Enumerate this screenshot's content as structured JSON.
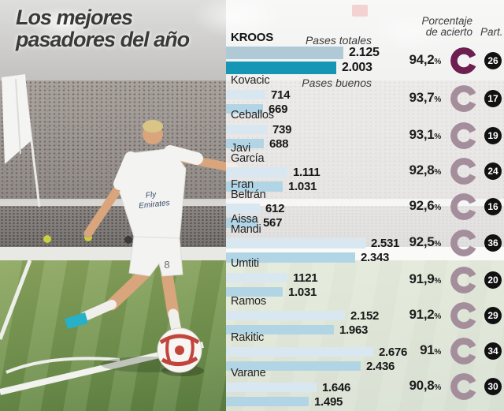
{
  "title": {
    "line1": "Los mejores",
    "line2": "pasadores del año"
  },
  "legend": {
    "pases_totales": "Pases totales",
    "pases_buenos": "Pases buenos"
  },
  "columns": {
    "accuracy_line1": "Porcentaje",
    "accuracy_line2": "de acierto",
    "matches": "Part."
  },
  "photo": {
    "jersey_line1": "Fly",
    "jersey_line2": "Emirates",
    "shorts_number": "8"
  },
  "colors": {
    "highlight_total_bar": "#b0c9d6",
    "highlight_good_bar": "#1596b5",
    "total_bar": "#d9e8f0",
    "good_bar": "#b2d5e6",
    "highlight_donut": "#6d2050",
    "donut": "#a48e9b",
    "badge_bg": "#111111",
    "badge_text": "#ffffff"
  },
  "chart_data": {
    "type": "bar",
    "title": "Los mejores pasadores del año",
    "bar_series_labels": [
      "Pases totales",
      "Pases buenos"
    ],
    "pct_suffix": "%",
    "series": [
      {
        "name": "KROOS",
        "total": 2125,
        "buenos": 2003,
        "total_label": "2.125",
        "buenos_label": "2.003",
        "pct": "94,2",
        "part": "26",
        "highlight": true
      },
      {
        "name": "Kovacic",
        "total": 714,
        "buenos": 669,
        "total_label": "714",
        "buenos_label": "669",
        "pct": "93,7",
        "part": "17",
        "highlight": false
      },
      {
        "name": "Ceballos",
        "total": 739,
        "buenos": 688,
        "total_label": "739",
        "buenos_label": "688",
        "pct": "93,1",
        "part": "19",
        "highlight": false
      },
      {
        "name": "Javi García",
        "total": 1111,
        "buenos": 1031,
        "total_label": "1.111",
        "buenos_label": "1.031",
        "pct": "92,8",
        "part": "24",
        "highlight": false
      },
      {
        "name": "Fran Beltrán",
        "total": 612,
        "buenos": 567,
        "total_label": "612",
        "buenos_label": "567",
        "pct": "92,6",
        "part": "16",
        "highlight": false
      },
      {
        "name": "Aissa Mandi",
        "total": 2531,
        "buenos": 2343,
        "total_label": "2.531",
        "buenos_label": "2.343",
        "pct": "92,5",
        "part": "36",
        "highlight": false
      },
      {
        "name": "Umtiti",
        "total": 1121,
        "buenos": 1031,
        "total_label": "1121",
        "buenos_label": "1.031",
        "pct": "91,9",
        "part": "20",
        "highlight": false
      },
      {
        "name": "Ramos",
        "total": 2152,
        "buenos": 1963,
        "total_label": "2.152",
        "buenos_label": "1.963",
        "pct": "91,2",
        "part": "29",
        "highlight": false
      },
      {
        "name": "Rakitic",
        "total": 2676,
        "buenos": 2436,
        "total_label": "2.676",
        "buenos_label": "2.436",
        "pct": "91",
        "part": "34",
        "highlight": false
      },
      {
        "name": "Varane",
        "total": 1646,
        "buenos": 1495,
        "total_label": "1.646",
        "buenos_label": "1.495",
        "pct": "90,8",
        "part": "30",
        "highlight": false
      }
    ]
  }
}
